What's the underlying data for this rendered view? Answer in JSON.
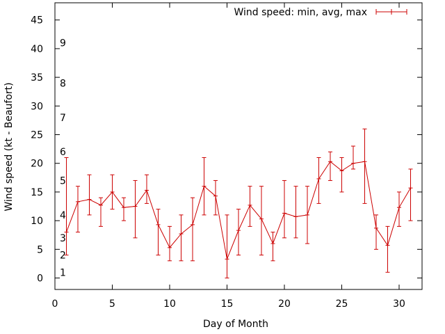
{
  "chart_data": {
    "type": "line",
    "title": "",
    "xlabel": "Day of Month",
    "ylabel": "Wind speed (kt - Beaufort)",
    "xlim": [
      0,
      32
    ],
    "ylim": [
      -2,
      48
    ],
    "x_ticks": [
      0,
      5,
      10,
      15,
      20,
      25,
      30
    ],
    "y_ticks": [
      0,
      5,
      10,
      15,
      20,
      25,
      30,
      35,
      40,
      45
    ],
    "grid": false,
    "legend_position": "top-right",
    "color": "#cc0000",
    "series": [
      {
        "name": "Wind speed: min, avg, max",
        "x": [
          1,
          2,
          3,
          4,
          5,
          6,
          7,
          8,
          9,
          10,
          11,
          12,
          13,
          14,
          15,
          16,
          17,
          18,
          19,
          20,
          21,
          22,
          23,
          24,
          25,
          26,
          27,
          28,
          29,
          30,
          31
        ],
        "avg": [
          8,
          13.3,
          13.7,
          12.7,
          15,
          12.3,
          12.5,
          15.3,
          9.3,
          5.3,
          7.7,
          9.3,
          16,
          14.3,
          3.3,
          8.3,
          12.7,
          10.3,
          6,
          11.3,
          10.7,
          11,
          17.3,
          20.3,
          18.7,
          20,
          20.3,
          8.7,
          5.7,
          12.3,
          15.7
        ],
        "min": [
          4,
          8,
          11,
          9,
          12,
          10,
          7,
          13,
          4,
          3,
          3,
          3,
          11,
          11,
          0,
          4,
          9,
          4,
          3,
          7,
          7,
          6,
          13,
          17,
          15,
          19,
          13,
          5,
          1,
          9,
          10
        ],
        "max": [
          21,
          16,
          18,
          14,
          18,
          14,
          17,
          18,
          12,
          9,
          11,
          14,
          21,
          17,
          11,
          12,
          16,
          16,
          8,
          17,
          16,
          16,
          21,
          22,
          21,
          23,
          26,
          11,
          9,
          15,
          19
        ]
      }
    ],
    "beaufort_labels": [
      {
        "value": 1,
        "label": "1"
      },
      {
        "value": 4,
        "label": "2"
      },
      {
        "value": 7,
        "label": "3"
      },
      {
        "value": 11,
        "label": "4"
      },
      {
        "value": 17,
        "label": "5"
      },
      {
        "value": 22,
        "label": "6"
      },
      {
        "value": 28,
        "label": "7"
      },
      {
        "value": 34,
        "label": "8"
      },
      {
        "value": 41,
        "label": "9"
      }
    ]
  }
}
